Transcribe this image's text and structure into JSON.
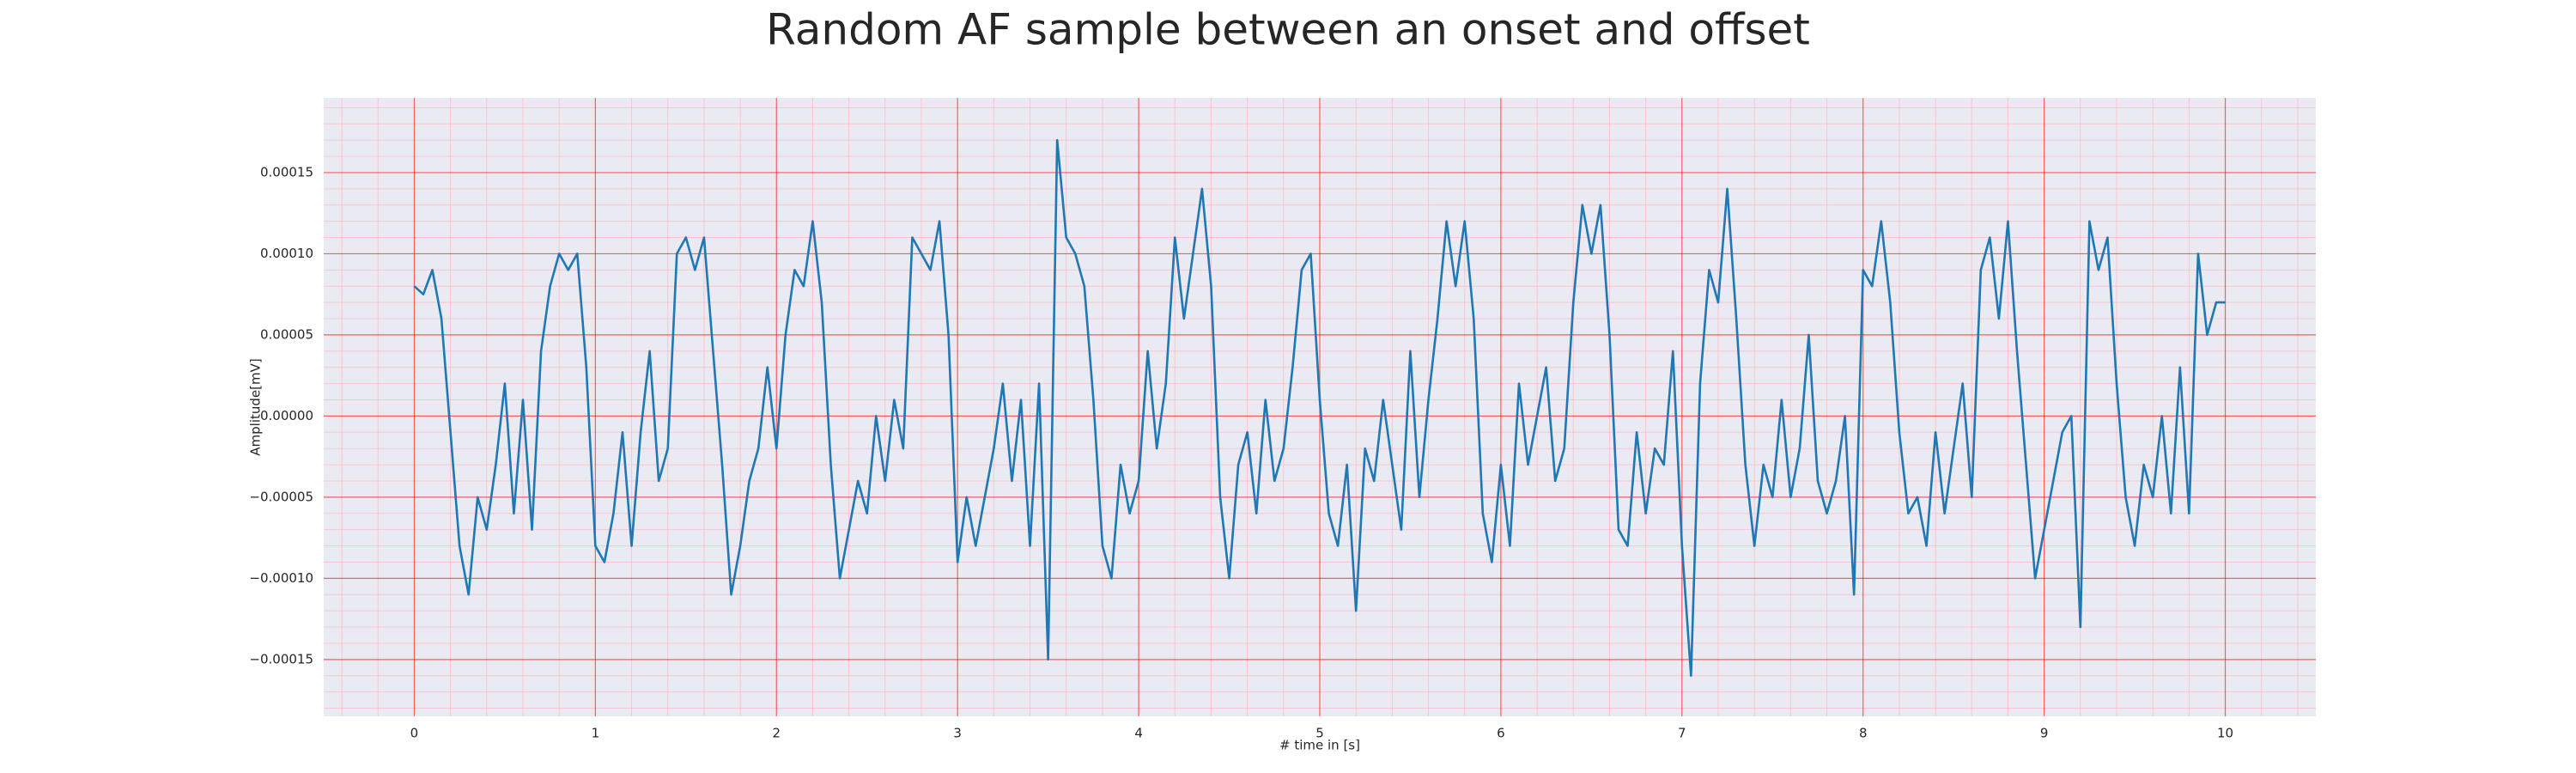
{
  "chart_data": {
    "type": "line",
    "title": "Random AF sample between an onset and offset",
    "xlabel": "# time in [s]",
    "ylabel": "Amplitude[mV]",
    "color": "#1f77b4",
    "background": "#eaeaf2",
    "grid": true,
    "grid_color": "#ff0000",
    "minor_grid": true,
    "minor_grid_color": "#ffb6c1",
    "minor_divisions": 5,
    "xlim": [
      -0.5,
      10.5
    ],
    "xticks": [
      0,
      1,
      2,
      3,
      4,
      5,
      6,
      7,
      8,
      9,
      10
    ],
    "ylim": [
      -0.000185,
      0.000196
    ],
    "yticks": [
      {
        "value": -0.00015,
        "label": "−0.00015"
      },
      {
        "value": -0.0001,
        "label": "−0.00010"
      },
      {
        "value": -5e-05,
        "label": "−0.00005"
      },
      {
        "value": 0,
        "label": "0.00000"
      },
      {
        "value": 5e-05,
        "label": "0.00005"
      },
      {
        "value": 0.0001,
        "label": "0.00010"
      },
      {
        "value": 0.00015,
        "label": "0.00015"
      }
    ],
    "x": [
      0,
      0.05,
      0.1,
      0.15,
      0.2,
      0.25,
      0.3,
      0.35,
      0.4,
      0.45,
      0.5,
      0.55,
      0.6,
      0.65,
      0.7,
      0.75,
      0.8,
      0.85,
      0.9,
      0.95,
      1,
      1.05,
      1.1,
      1.15,
      1.2,
      1.25,
      1.3,
      1.35,
      1.4,
      1.45,
      1.5,
      1.55,
      1.6,
      1.65,
      1.7,
      1.75,
      1.8,
      1.85,
      1.9,
      1.95,
      2,
      2.05,
      2.1,
      2.15,
      2.2,
      2.25,
      2.3,
      2.35,
      2.4,
      2.45,
      2.5,
      2.55,
      2.6,
      2.65,
      2.7,
      2.75,
      2.8,
      2.85,
      2.9,
      2.95,
      3,
      3.05,
      3.1,
      3.15,
      3.2,
      3.25,
      3.3,
      3.35,
      3.4,
      3.45,
      3.5,
      3.55,
      3.6,
      3.65,
      3.7,
      3.75,
      3.8,
      3.85,
      3.9,
      3.95,
      4,
      4.05,
      4.1,
      4.15,
      4.2,
      4.25,
      4.3,
      4.35,
      4.4,
      4.45,
      4.5,
      4.55,
      4.6,
      4.65,
      4.7,
      4.75,
      4.8,
      4.85,
      4.9,
      4.95,
      5,
      5.05,
      5.1,
      5.15,
      5.2,
      5.25,
      5.3,
      5.35,
      5.4,
      5.45,
      5.5,
      5.55,
      5.6,
      5.65,
      5.7,
      5.75,
      5.8,
      5.85,
      5.9,
      5.95,
      6,
      6.05,
      6.1,
      6.15,
      6.2,
      6.25,
      6.3,
      6.35,
      6.4,
      6.45,
      6.5,
      6.55,
      6.6,
      6.65,
      6.7,
      6.75,
      6.8,
      6.85,
      6.9,
      6.95,
      7,
      7.05,
      7.1,
      7.15,
      7.2,
      7.25,
      7.3,
      7.35,
      7.4,
      7.45,
      7.5,
      7.55,
      7.6,
      7.65,
      7.7,
      7.75,
      7.8,
      7.85,
      7.9,
      7.95,
      8,
      8.05,
      8.1,
      8.15,
      8.2,
      8.25,
      8.3,
      8.35,
      8.4,
      8.45,
      8.5,
      8.55,
      8.6,
      8.65,
      8.7,
      8.75,
      8.8,
      8.85,
      8.9,
      8.95,
      9,
      9.05,
      9.1,
      9.15,
      9.2,
      9.25,
      9.3,
      9.35,
      9.4,
      9.45,
      9.5,
      9.55,
      9.6,
      9.65,
      9.7,
      9.75,
      9.8,
      9.85,
      9.9,
      9.95,
      10
    ],
    "values": [
      8e-05,
      7.5e-05,
      9e-05,
      6e-05,
      -1e-05,
      -8e-05,
      -0.00011,
      -5e-05,
      -7e-05,
      -3e-05,
      2e-05,
      -6e-05,
      1e-05,
      -7e-05,
      4e-05,
      8e-05,
      0.0001,
      9e-05,
      0.0001,
      3e-05,
      -8e-05,
      -9e-05,
      -6e-05,
      -1e-05,
      -8e-05,
      -1e-05,
      4e-05,
      -4e-05,
      -2e-05,
      0.0001,
      0.00011,
      9e-05,
      0.00011,
      4e-05,
      -3e-05,
      -0.00011,
      -8e-05,
      -4e-05,
      -2e-05,
      3e-05,
      -2e-05,
      5e-05,
      9e-05,
      8e-05,
      0.00012,
      7e-05,
      -3e-05,
      -0.0001,
      -7e-05,
      -4e-05,
      -6e-05,
      0,
      -4e-05,
      1e-05,
      -2e-05,
      0.00011,
      0.0001,
      9e-05,
      0.00012,
      5e-05,
      -9e-05,
      -5e-05,
      -8e-05,
      -5e-05,
      -2e-05,
      2e-05,
      -4e-05,
      1e-05,
      -8e-05,
      2e-05,
      -0.00015,
      0.00017,
      0.00011,
      0.0001,
      8e-05,
      1e-05,
      -8e-05,
      -0.0001,
      -3e-05,
      -6e-05,
      -4e-05,
      4e-05,
      -2e-05,
      2e-05,
      0.00011,
      6e-05,
      0.0001,
      0.00014,
      8e-05,
      -5e-05,
      -0.0001,
      -3e-05,
      -1e-05,
      -6e-05,
      1e-05,
      -4e-05,
      -2e-05,
      3e-05,
      9e-05,
      0.0001,
      1e-05,
      -6e-05,
      -8e-05,
      -3e-05,
      -0.00012,
      -2e-05,
      -4e-05,
      1e-05,
      -3e-05,
      -7e-05,
      4e-05,
      -5e-05,
      1e-05,
      6e-05,
      0.00012,
      8e-05,
      0.00012,
      6e-05,
      -6e-05,
      -9e-05,
      -3e-05,
      -8e-05,
      2e-05,
      -3e-05,
      0,
      3e-05,
      -4e-05,
      -2e-05,
      7e-05,
      0.00013,
      0.0001,
      0.00013,
      5e-05,
      -7e-05,
      -8e-05,
      -1e-05,
      -6e-05,
      -2e-05,
      -3e-05,
      4e-05,
      -8e-05,
      -0.00016,
      2e-05,
      9e-05,
      7e-05,
      0.00014,
      6e-05,
      -3e-05,
      -8e-05,
      -3e-05,
      -5e-05,
      1e-05,
      -5e-05,
      -2e-05,
      5e-05,
      -4e-05,
      -6e-05,
      -4e-05,
      0,
      -0.00011,
      9e-05,
      8e-05,
      0.00012,
      7e-05,
      -1e-05,
      -6e-05,
      -5e-05,
      -8e-05,
      -1e-05,
      -6e-05,
      -2e-05,
      2e-05,
      -5e-05,
      9e-05,
      0.00011,
      6e-05,
      0.00012,
      4e-05,
      -3e-05,
      -0.0001,
      -7e-05,
      -4e-05,
      -1e-05,
      0,
      -0.00013,
      0.00012,
      9e-05,
      0.00011,
      2e-05,
      -5e-05,
      -8e-05,
      -3e-05,
      -5e-05,
      0,
      -6e-05,
      3e-05,
      -6e-05,
      0.0001,
      5e-05,
      7e-05,
      7e-05
    ]
  }
}
